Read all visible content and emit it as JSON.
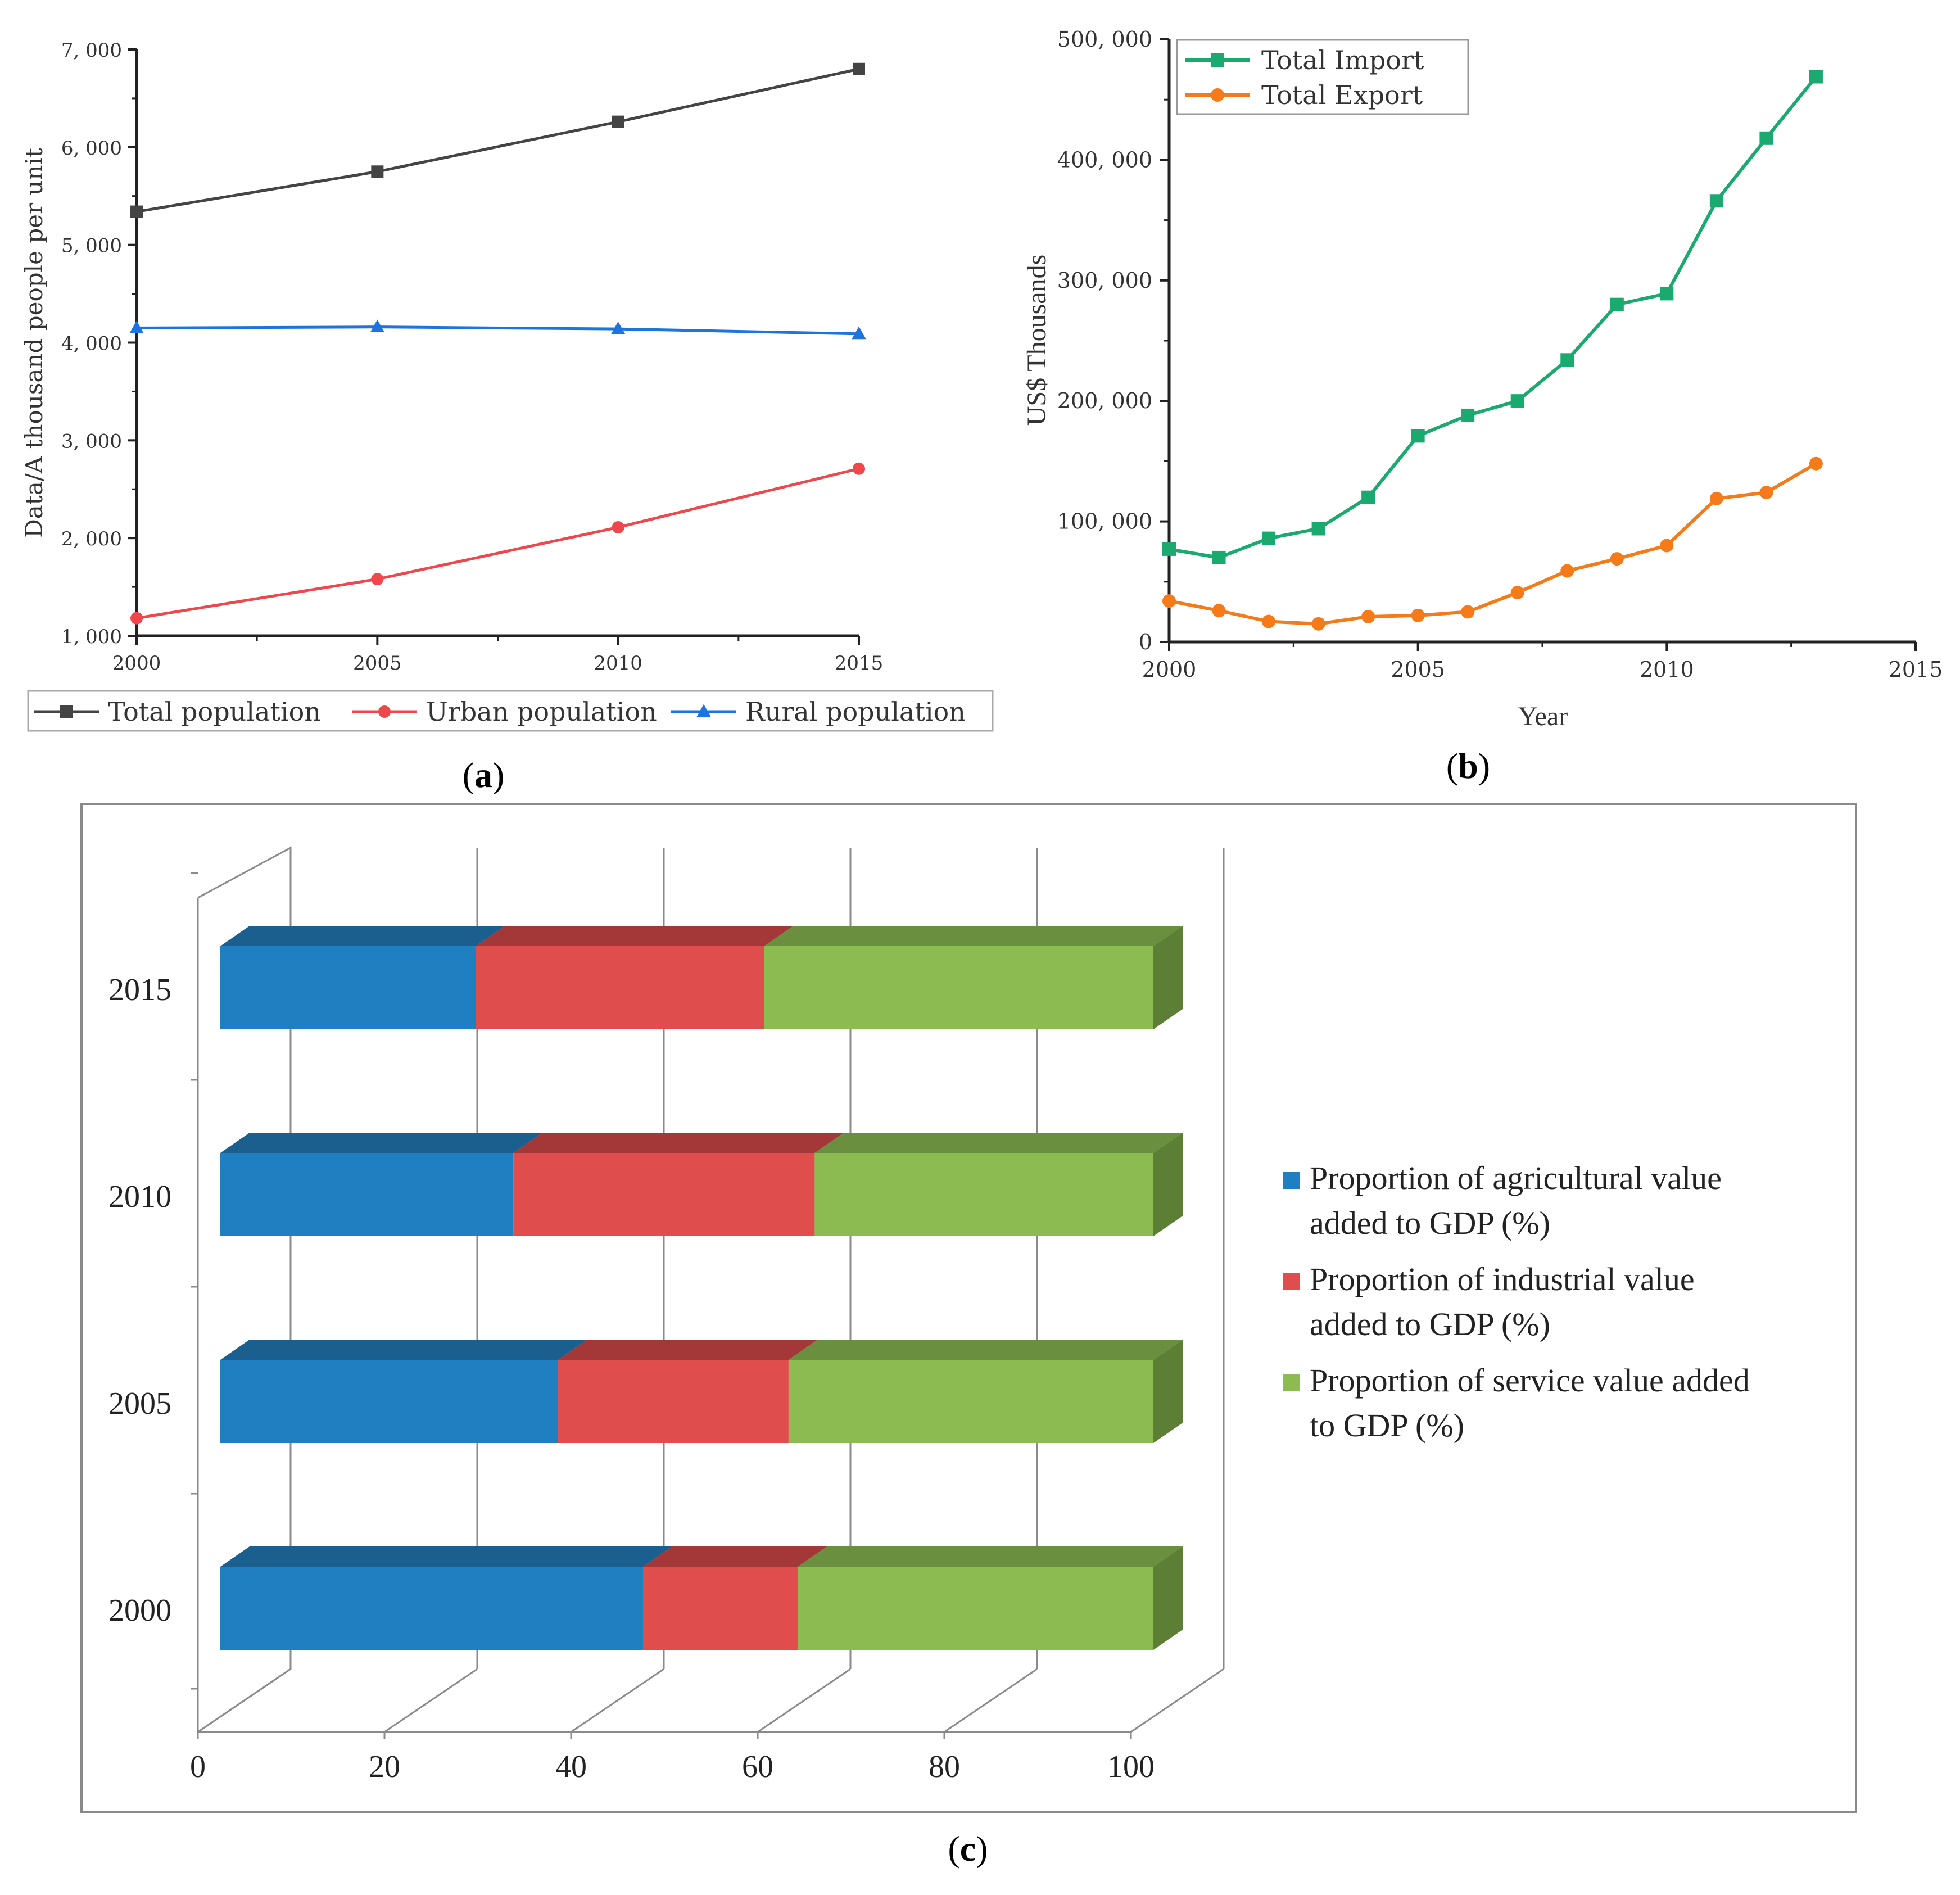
{
  "panel_labels": {
    "a": "a",
    "b": "b",
    "c": "c"
  },
  "chart_data": [
    {
      "panel": "a",
      "type": "line",
      "title": "",
      "xlabel": "",
      "ylabel": "Data/A thousand people per unit",
      "xlim": [
        2000,
        2015
      ],
      "ylim": [
        1000,
        7000
      ],
      "x_ticks": [
        "2000",
        "2005",
        "2010",
        "2015"
      ],
      "y_ticks": [
        "1, 000",
        "2, 000",
        "3, 000",
        "4, 000",
        "5, 000",
        "6, 000",
        "7, 000"
      ],
      "grid": false,
      "legend_position": "bottom",
      "x": [
        2000,
        2005,
        2010,
        2015
      ],
      "series": [
        {
          "name": "Total population",
          "color": "#444444",
          "marker": "square",
          "values": [
            5340,
            5750,
            6260,
            6800
          ]
        },
        {
          "name": "Urban population",
          "color": "#f0474c",
          "marker": "circle",
          "values": [
            1180,
            1580,
            2110,
            2710
          ]
        },
        {
          "name": "Rural population",
          "color": "#1b75dd",
          "marker": "triangle",
          "values": [
            4150,
            4160,
            4140,
            4090
          ]
        }
      ]
    },
    {
      "panel": "b",
      "type": "line",
      "title": "",
      "xlabel": "Year",
      "ylabel": "US$ Thousands",
      "xlim": [
        2000,
        2015
      ],
      "ylim": [
        0,
        500000
      ],
      "x_ticks": [
        "2000",
        "2005",
        "2010",
        "2015"
      ],
      "y_ticks": [
        "0",
        "100, 000",
        "200, 000",
        "300, 000",
        "400, 000",
        "500, 000"
      ],
      "grid": false,
      "legend_position": "top-left",
      "x": [
        2000,
        2001,
        2002,
        2003,
        2004,
        2005,
        2006,
        2007,
        2008,
        2009,
        2010,
        2011,
        2012,
        2013
      ],
      "series": [
        {
          "name": "Total Import",
          "color": "#1aaa6f",
          "marker": "square",
          "values": [
            77000,
            70000,
            86000,
            94000,
            120000,
            171000,
            188000,
            200000,
            234000,
            280000,
            289000,
            366000,
            418000,
            469000
          ]
        },
        {
          "name": "Total Export",
          "color": "#f57a19",
          "marker": "circle",
          "values": [
            34000,
            26000,
            17000,
            15000,
            21000,
            22000,
            25000,
            41000,
            59000,
            69000,
            80000,
            119000,
            124000,
            148000
          ]
        }
      ]
    },
    {
      "panel": "c",
      "type": "bar",
      "orientation": "horizontal",
      "stacked": true,
      "three_d": true,
      "title": "",
      "xlabel": "",
      "ylabel": "",
      "xlim": [
        0,
        100
      ],
      "x_ticks": [
        "0",
        "20",
        "40",
        "60",
        "80",
        "100"
      ],
      "categories": [
        "2015",
        "2010",
        "2005",
        "2000"
      ],
      "grid": true,
      "legend_position": "right",
      "series": [
        {
          "name": "Proportion of agricultural value added to GDP (%)",
          "color": "#1f7fc0",
          "top_color": "#1a5f8d",
          "side_color": "#17567f",
          "values": [
            27.4,
            31.4,
            36.2,
            45.3
          ]
        },
        {
          "name": "Proportion of industrial value added to GDP (%)",
          "color": "#df4e4c",
          "top_color": "#a43838",
          "side_color": "#8f3030",
          "values": [
            30.9,
            32.3,
            24.7,
            16.6
          ]
        },
        {
          "name": "Proportion of service value added to GDP (%)",
          "color": "#8cbb52",
          "top_color": "#6a8f3f",
          "side_color": "#5d7f35",
          "values": [
            41.7,
            36.3,
            39.1,
            38.1
          ]
        }
      ],
      "legend_lines": [
        [
          "Proportion of agricultural value",
          "added to GDP (%)"
        ],
        [
          "Proportion of industrial value",
          "added to GDP (%)"
        ],
        [
          "Proportion of service value added",
          "to GDP (%)"
        ]
      ]
    }
  ]
}
